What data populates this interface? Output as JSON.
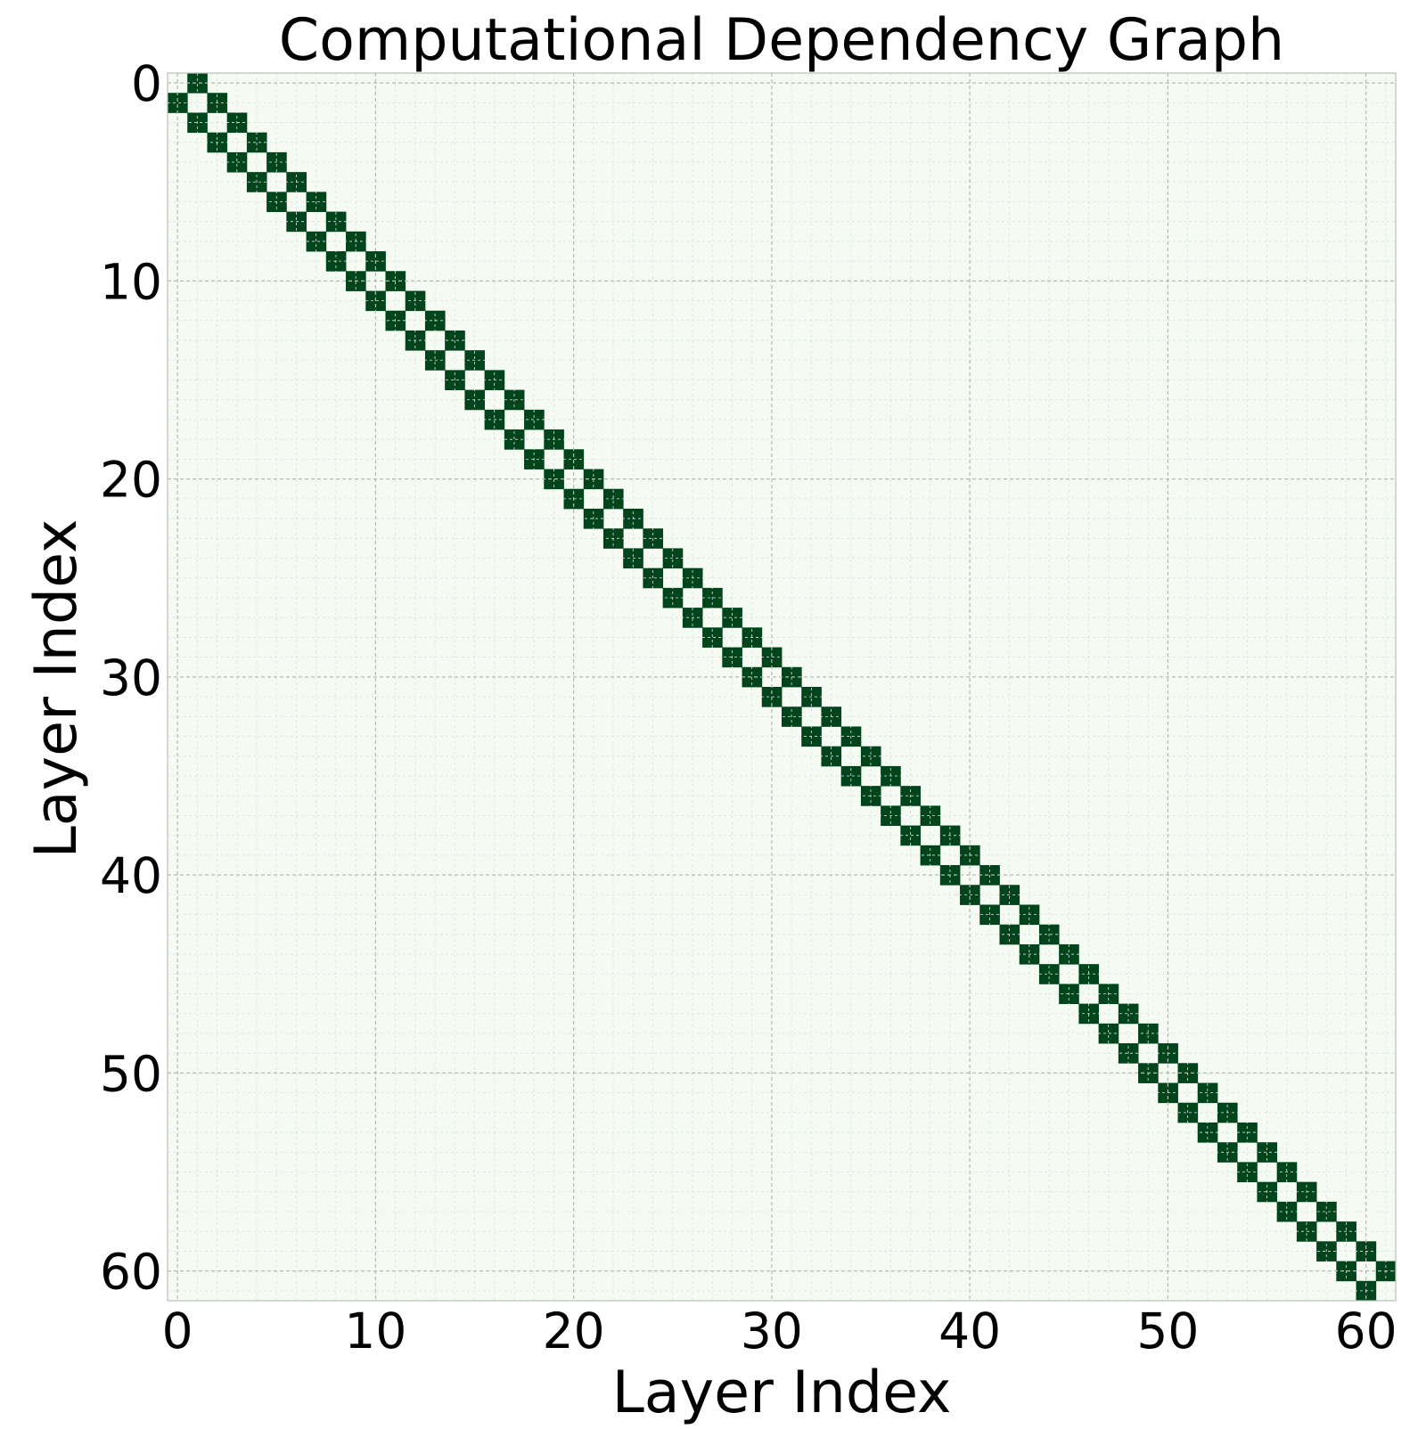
{
  "chart_data": {
    "type": "heatmap",
    "title": "Computational Dependency Graph",
    "xlabel": "Layer Index",
    "ylabel": "Layer Index",
    "size": 62,
    "xlim": [
      -0.5,
      61.5
    ],
    "ylim": [
      61.5,
      -0.5
    ],
    "xticks": [
      0,
      10,
      20,
      30,
      40,
      50,
      60
    ],
    "yticks": [
      0,
      10,
      20,
      30,
      40,
      50,
      60
    ],
    "tick_labels": [
      "0",
      "10",
      "20",
      "30",
      "40",
      "50",
      "60"
    ],
    "pattern": "adjacent-layer dependencies: cell (i, j) = 1 when |i - j| = 1, otherwise 0",
    "grid": true,
    "colors": {
      "empty": "#f5fbf3",
      "filled": "#00441b",
      "major_grid": "#b2bcb2",
      "minor_grid": "#d8e4e4",
      "frame": "#b8c2b8"
    }
  }
}
